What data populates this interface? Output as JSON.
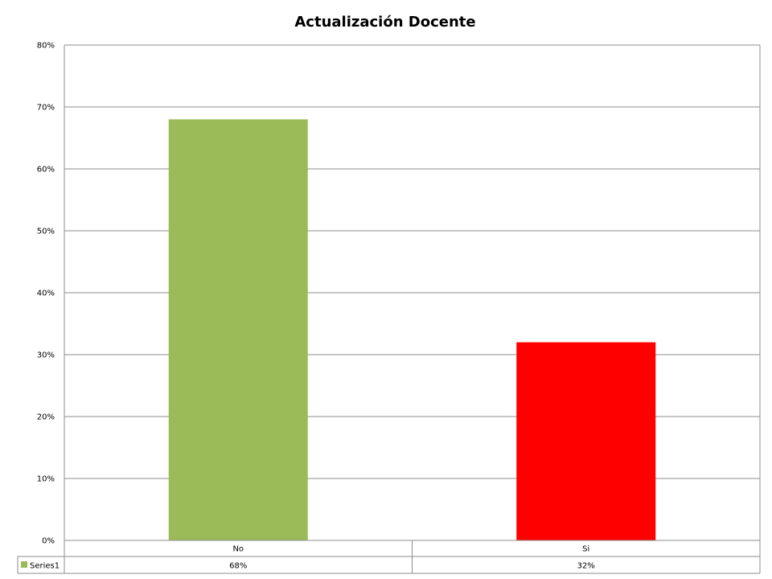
{
  "chart_data": {
    "type": "bar",
    "title": "Actualización Docente",
    "categories": [
      "No",
      "Si"
    ],
    "series": [
      {
        "name": "Series1",
        "values": [
          68,
          32
        ],
        "value_labels": [
          "68%",
          "32%"
        ]
      }
    ],
    "bar_colors": [
      "#9BBB59",
      "#FF0000"
    ],
    "legend_color": "#9BBB59",
    "ylim": [
      0,
      80
    ],
    "ytick_values": [
      0,
      10,
      20,
      30,
      40,
      50,
      60,
      70,
      80
    ],
    "ytick_labels": [
      "0%",
      "10%",
      "20%",
      "30%",
      "40%",
      "50%",
      "60%",
      "70%",
      "80%"
    ],
    "grid": true,
    "legend": "data-table"
  }
}
